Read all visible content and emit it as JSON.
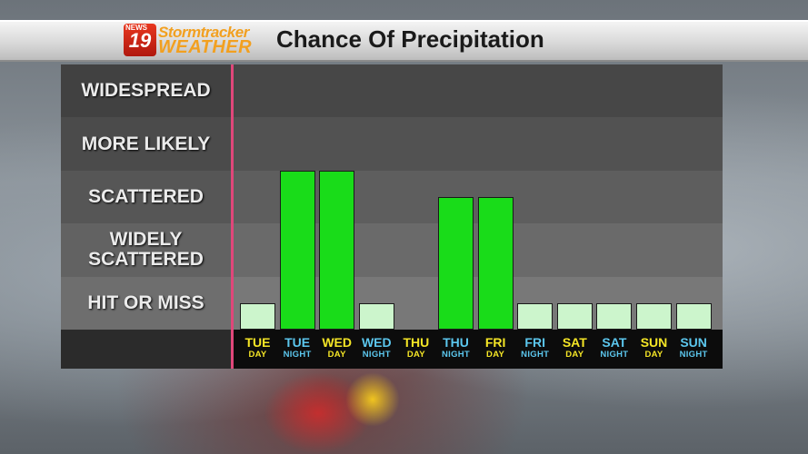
{
  "header": {
    "logo_number": "19",
    "logo_news": "NEWS",
    "logo_line1": "Stormtracker",
    "logo_line2": "WEATHER",
    "title": "Chance Of Precipitation"
  },
  "chart_data": {
    "type": "bar",
    "title": "Chance Of Precipitation",
    "y_levels": [
      "HIT OR MISS",
      "WIDELY SCATTERED",
      "SCATTERED",
      "MORE LIKELY",
      "WIDESPREAD"
    ],
    "ylim": [
      0,
      5
    ],
    "categories": [
      {
        "day": "TUE",
        "period": "DAY"
      },
      {
        "day": "TUE",
        "period": "NIGHT"
      },
      {
        "day": "WED",
        "period": "DAY"
      },
      {
        "day": "WED",
        "period": "NIGHT"
      },
      {
        "day": "THU",
        "period": "DAY"
      },
      {
        "day": "THU",
        "period": "NIGHT"
      },
      {
        "day": "FRI",
        "period": "DAY"
      },
      {
        "day": "FRI",
        "period": "NIGHT"
      },
      {
        "day": "SAT",
        "period": "DAY"
      },
      {
        "day": "SAT",
        "period": "NIGHT"
      },
      {
        "day": "SUN",
        "period": "DAY"
      },
      {
        "day": "SUN",
        "period": "NIGHT"
      }
    ],
    "values": [
      0.5,
      3.0,
      3.0,
      0.5,
      0,
      2.5,
      2.5,
      0.5,
      0.5,
      0.5,
      0.5,
      0.5
    ],
    "grid": true,
    "colors": {
      "high_bar": "#19dc19",
      "low_bar": "#ccf5cc",
      "day_label": "#f5e626",
      "night_label": "#5cc7ee"
    }
  }
}
